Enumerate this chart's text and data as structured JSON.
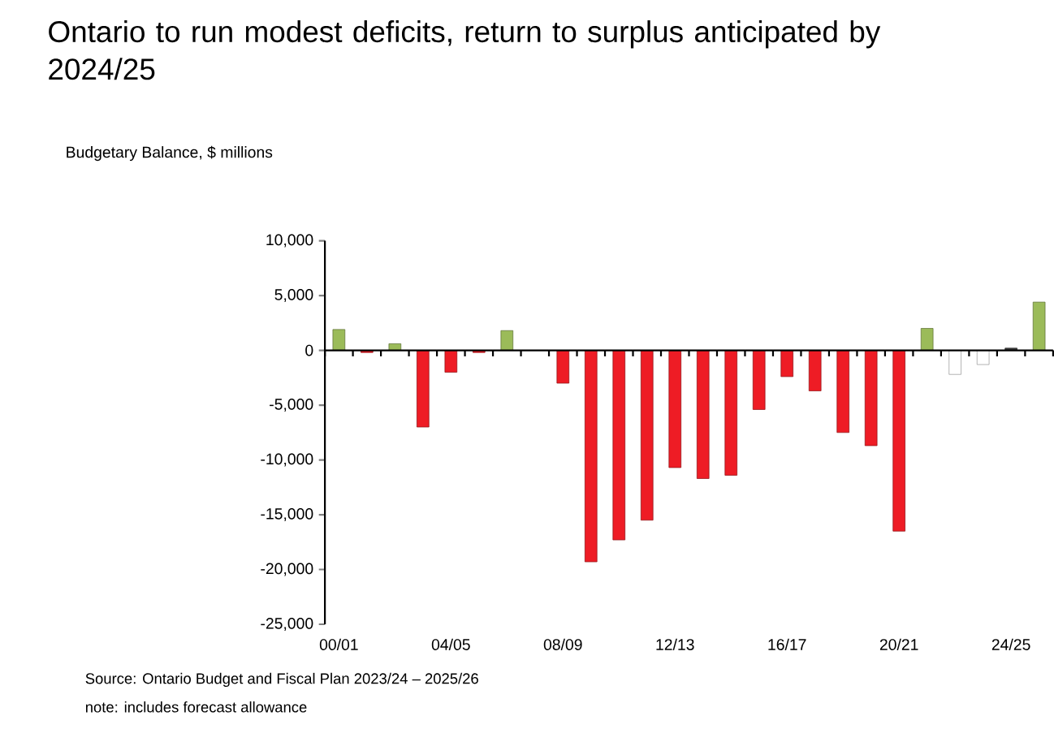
{
  "chart_data": {
    "type": "bar",
    "title": "Ontario to run modest deficits, return to surplus anticipated by 2024/25",
    "ylabel": "Budgetary Balance, $ millions",
    "categories": [
      "00/01",
      null,
      null,
      null,
      "04/05",
      null,
      null,
      null,
      "08/09",
      null,
      null,
      null,
      "12/13",
      null,
      null,
      null,
      "16/17",
      null,
      null,
      null,
      "20/21",
      null,
      null,
      null,
      "24/25",
      null
    ],
    "values": [
      1900,
      -200,
      600,
      -7000,
      -2000,
      -200,
      1800,
      0,
      -3000,
      -19300,
      -17300,
      -15500,
      -10700,
      -11700,
      -11400,
      -5400,
      -2400,
      -3700,
      -7500,
      -8700,
      -16500,
      2000,
      -2200,
      -1300,
      200,
      4400
    ],
    "colors": [
      "#9bbb59",
      "#ee1c25",
      "#9bbb59",
      "#ee1c25",
      "#ee1c25",
      "#ee1c25",
      "#9bbb59",
      "#ee1c25",
      "#ee1c25",
      "#ee1c25",
      "#ee1c25",
      "#ee1c25",
      "#ee1c25",
      "#ee1c25",
      "#ee1c25",
      "#ee1c25",
      "#ee1c25",
      "#ee1c25",
      "#ee1c25",
      "#ee1c25",
      "#ee1c25",
      "#9bbb59",
      "#ffffff",
      "#ffffff",
      "#404040",
      "#9bbb59"
    ],
    "ylim": [
      -25000,
      10000
    ],
    "yticks": [
      {
        "value": -25000,
        "label": "-25,000"
      },
      {
        "value": -20000,
        "label": "-20,000"
      },
      {
        "value": -15000,
        "label": "-15,000"
      },
      {
        "value": -10000,
        "label": "-10,000"
      },
      {
        "value": -5000,
        "label": "-5,000"
      },
      {
        "value": 0,
        "label": "0"
      },
      {
        "value": 5000,
        "label": "5,000"
      },
      {
        "value": 10000,
        "label": "10,000"
      }
    ],
    "annotations": [
      "Source:  Ontario Budget and Fiscal Plan 2023/24 – 2025/26",
      "note: includes forecast allowance"
    ]
  }
}
